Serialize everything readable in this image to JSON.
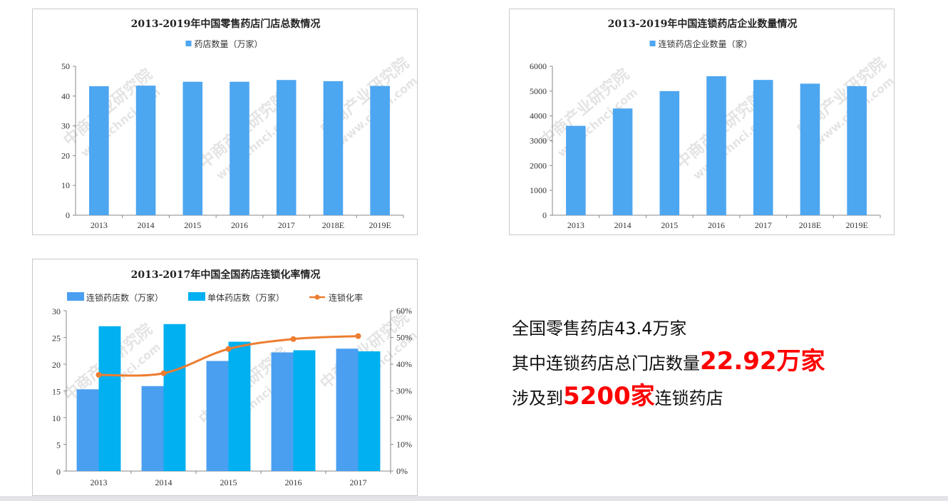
{
  "chart_data": [
    {
      "type": "bar",
      "title": "2013-2019年中国零售药店门店总数情况",
      "categories": [
        "2013",
        "2014",
        "2015",
        "2016",
        "2017",
        "2018E",
        "2019E"
      ],
      "series": [
        {
          "name": "药店数量（万家）",
          "values": [
            43.3,
            43.5,
            44.8,
            44.8,
            45.4,
            45.0,
            43.4
          ],
          "color": "#4da6f0"
        }
      ],
      "ylim": [
        0,
        50
      ],
      "yticks": [
        0,
        10,
        20,
        30,
        40,
        50
      ],
      "grid": false,
      "legend": "top-center"
    },
    {
      "type": "bar",
      "title": "2013-2019年中国连锁药店企业数量情况",
      "categories": [
        "2013",
        "2014",
        "2015",
        "2016",
        "2017",
        "2018E",
        "2019E"
      ],
      "series": [
        {
          "name": "连锁药店企业数量（家）",
          "values": [
            3600,
            4300,
            5000,
            5600,
            5450,
            5300,
            5200
          ],
          "color": "#4da6f0"
        }
      ],
      "ylim": [
        0,
        6000
      ],
      "yticks": [
        0,
        1000,
        2000,
        3000,
        4000,
        5000,
        6000
      ],
      "grid": false,
      "legend": "top-center"
    },
    {
      "type": "bar",
      "title": "2013-2017年中国全国药店连锁化率情况",
      "categories": [
        "2013",
        "2014",
        "2015",
        "2016",
        "2017"
      ],
      "series": [
        {
          "name": "连锁药店数（万家）",
          "values": [
            15.3,
            15.9,
            20.6,
            22.2,
            22.9
          ],
          "color": "#4a9ff0",
          "kind": "bar"
        },
        {
          "name": "单体药店数（万家）",
          "values": [
            27.1,
            27.5,
            24.2,
            22.6,
            22.4
          ],
          "color": "#00b0f0",
          "kind": "bar"
        },
        {
          "name": "连锁化率",
          "values": [
            36,
            36.6,
            45.7,
            49.4,
            50.5
          ],
          "color": "#ed7d31",
          "kind": "line",
          "axis": "right"
        }
      ],
      "ylim": [
        0,
        30
      ],
      "yticks": [
        0,
        5,
        10,
        15,
        20,
        25,
        30
      ],
      "y2lim": [
        0,
        60
      ],
      "y2ticks": [
        "0%",
        "10%",
        "20%",
        "30%",
        "40%",
        "50%",
        "60%"
      ],
      "grid": false,
      "legend": "top"
    }
  ],
  "summary": {
    "line1": "全国零售药店43.4万家",
    "line2_prefix": "其中连锁药店总门店数量",
    "line2_highlight": "22.92万家",
    "line3_prefix": "涉及到",
    "line3_highlight": "5200家",
    "line3_suffix": "连锁药店"
  },
  "watermark": {
    "brand": "中商产业研究院",
    "url": "www.chnci.com"
  }
}
